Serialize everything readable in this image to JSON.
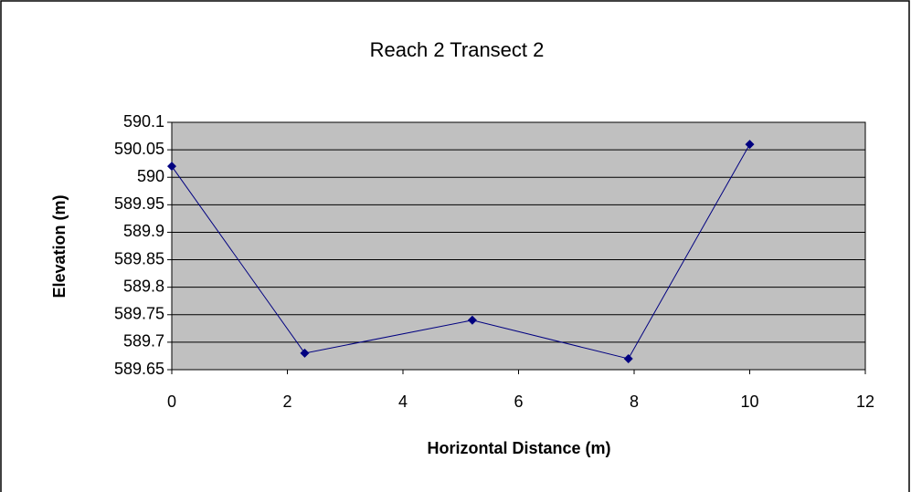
{
  "chart_data": {
    "type": "line",
    "title": "Reach 2 Transect 2",
    "xlabel": "Horizontal Distance (m)",
    "ylabel": "Elevation (m)",
    "x": [
      0,
      2.3,
      5.2,
      7.9,
      10
    ],
    "series": [
      {
        "name": "Elevation",
        "color": "#000080",
        "values": [
          590.02,
          589.68,
          589.74,
          589.67,
          590.06
        ]
      }
    ],
    "xlim": [
      0,
      12
    ],
    "xticks": [
      0,
      2,
      4,
      6,
      8,
      10,
      12
    ],
    "ylim": [
      589.65,
      590.1
    ],
    "yticks": [
      589.65,
      589.7,
      589.75,
      589.8,
      589.85,
      589.9,
      589.95,
      590,
      590.05,
      590.1
    ],
    "grid": true,
    "plot_background": "#c0c0c0"
  }
}
